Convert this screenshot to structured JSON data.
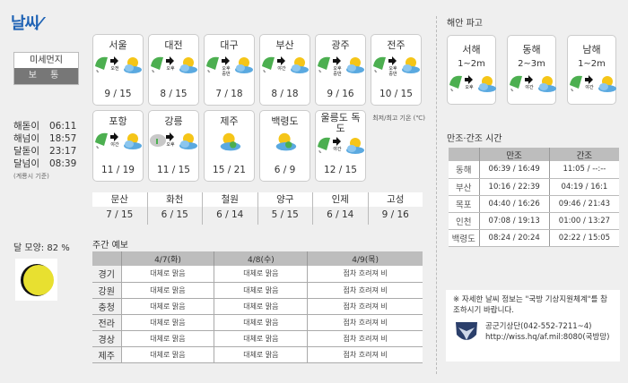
{
  "title": "날씨",
  "dust": {
    "label": "미세먼지",
    "value": "보 통"
  },
  "suntimes": [
    {
      "label": "해돋이",
      "value": "06:11"
    },
    {
      "label": "해넘이",
      "value": "18:57"
    },
    {
      "label": "달돋이",
      "value": "23:17"
    },
    {
      "label": "달넘이",
      "value": "08:39"
    }
  ],
  "suntimes_note": "(계룡시 기준)",
  "cities": [
    {
      "name": "서울",
      "icon": "rain-to-sunny-cloudy",
      "when": "오전",
      "temp": "9 / 15"
    },
    {
      "name": "대전",
      "icon": "rain-to-sunny-cloudy",
      "when": "오후",
      "temp": "8 / 15"
    },
    {
      "name": "대구",
      "icon": "rain-to-sunny-cloudy",
      "when": "오후 중반",
      "temp": "7 / 18"
    },
    {
      "name": "부산",
      "icon": "rain-to-sunny-cloudy",
      "when": "야간",
      "temp": "8 / 18"
    },
    {
      "name": "광주",
      "icon": "rain-to-sunny-cloudy",
      "when": "오후 중반",
      "temp": "9 / 16"
    },
    {
      "name": "전주",
      "icon": "rain-to-sunny-cloudy",
      "when": "오후 중반",
      "temp": "10 / 15"
    },
    {
      "name": "포항",
      "icon": "rain-to-sunny-cloudy",
      "when": "야간",
      "temp": "11 / 19"
    },
    {
      "name": "강릉",
      "icon": "cloud-rain-to-sunny-cloudy",
      "when": "오후",
      "temp": "11 / 15"
    },
    {
      "name": "제주",
      "icon": "partly-cloudy",
      "when": "",
      "temp": "15 / 21"
    },
    {
      "name": "백령도",
      "icon": "partly-cloudy",
      "when": "",
      "temp": "6 / 9"
    },
    {
      "name": "울릉도 독도",
      "icon": "rain-to-sunny-cloudy",
      "when": "야간",
      "temp": "12 / 15"
    }
  ],
  "temp_unit": "최저/최고 기온 (℃)",
  "small_cities": [
    {
      "name": "문산",
      "temp": "7 / 15"
    },
    {
      "name": "화천",
      "temp": "6 / 15"
    },
    {
      "name": "철원",
      "temp": "6 / 14"
    },
    {
      "name": "양구",
      "temp": "5 / 15"
    },
    {
      "name": "인제",
      "temp": "6 / 14"
    },
    {
      "name": "고성",
      "temp": "9 / 16"
    }
  ],
  "moon": {
    "label": "달 모양: 82 %",
    "illumination_pct": 82,
    "color": "#e8e030"
  },
  "weekly": {
    "title": "주간 예보",
    "days": [
      "4/7(화)",
      "4/8(수)",
      "4/9(목)"
    ],
    "rows": [
      {
        "region": "경기",
        "values": [
          "대체로 맑음",
          "대체로 맑음",
          "점차 흐려져 비"
        ]
      },
      {
        "region": "강원",
        "values": [
          "대체로 맑음",
          "대체로 맑음",
          "점차 흐려져 비"
        ]
      },
      {
        "region": "충청",
        "values": [
          "대체로 맑음",
          "대체로 맑음",
          "점차 흐려져 비"
        ]
      },
      {
        "region": "전라",
        "values": [
          "대체로 맑음",
          "대체로 맑음",
          "점차 흐려져 비"
        ]
      },
      {
        "region": "경상",
        "values": [
          "대체로 맑음",
          "대체로 맑음",
          "점차 흐려져 비"
        ]
      },
      {
        "region": "제주",
        "values": [
          "대체로 맑음",
          "대체로 맑음",
          "점차 흐려져 비"
        ]
      }
    ]
  },
  "waves": {
    "title": "해안 파고",
    "items": [
      {
        "name": "서해",
        "height": "1~2m",
        "icon": "rain-to-sunny-cloudy",
        "when": "오후"
      },
      {
        "name": "동해",
        "height": "2~3m",
        "icon": "rain-to-sunny-cloudy",
        "when": "야간"
      },
      {
        "name": "남해",
        "height": "1~2m",
        "icon": "rain-to-sunny-cloudy",
        "when": "야간"
      }
    ]
  },
  "tide": {
    "title": "만조·간조 시간",
    "headers": [
      "",
      "만조",
      "간조"
    ],
    "rows": [
      [
        "동해",
        "06:39 / 16:49",
        "11:05 / --:--"
      ],
      [
        "부산",
        "10:16 / 22:39",
        "04:19 / 16:1"
      ],
      [
        "목포",
        "04:40 / 16:26",
        "09:46 / 21:43"
      ],
      [
        "인천",
        "07:08 / 19:13",
        "01:00 / 13:27"
      ],
      [
        "백령도",
        "08:24 / 20:24",
        "02:22 / 15:05"
      ]
    ]
  },
  "info": {
    "notice": "※ 자세한 날씨 정보는 \"국방 기상지원체계\"를 참조하시기 바랍니다.",
    "contact": "공군기상단(042-552-7211~4)",
    "url": "http://wiss.hq/af.mil:8080(국방망)",
    "logo": "air-force-weather-emblem"
  },
  "colors": {
    "title": "#1f63b5",
    "umbrella": "#4caf50",
    "sun": "#f5c518",
    "cloud": "#5aa9e0"
  }
}
